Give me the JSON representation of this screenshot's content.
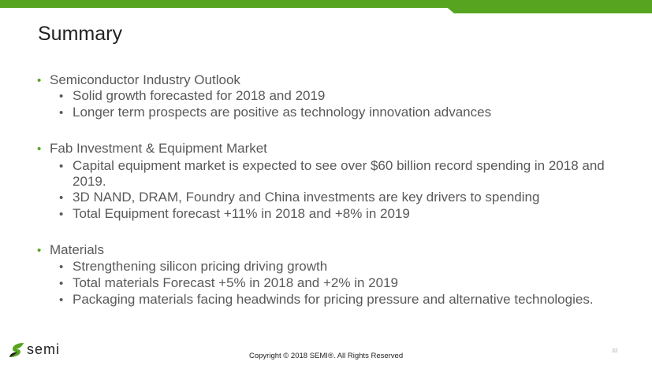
{
  "title": "Summary",
  "sections": [
    {
      "heading": "Semiconductor Industry Outlook",
      "items": [
        "Solid growth forecasted for 2018 and 2019",
        "Longer term prospects are positive as technology innovation advances"
      ]
    },
    {
      "heading": "Fab Investment & Equipment Market",
      "items": [
        "Capital equipment market is expected to see over $60 billion record spending in 2018 and",
        "2019.",
        "3D NAND, DRAM, Foundry and China investments are key drivers to spending",
        "Total Equipment forecast +11% in 2018 and +8% in 2019"
      ]
    },
    {
      "heading": " Materials",
      "items": [
        "Strengthening silicon pricing driving growth",
        "Total materials Forecast +5% in 2018 and +2% in 2019",
        "Packaging materials facing headwinds for pricing pressure and alternative technologies."
      ]
    }
  ],
  "footer": {
    "logo": "semi",
    "copyright": "Copyright © 2018  SEMI®. All Rights Reserved",
    "page": "32"
  },
  "colors": {
    "accent": "#56a41f"
  }
}
